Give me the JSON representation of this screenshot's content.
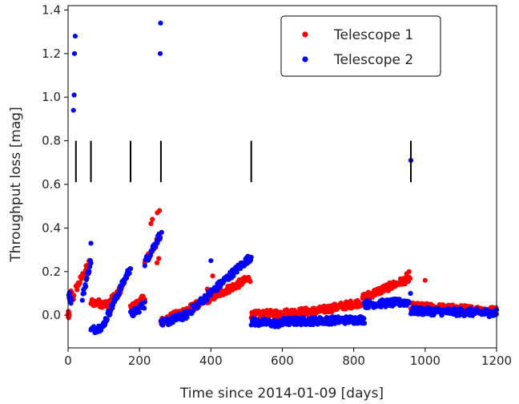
{
  "chart_data": {
    "type": "scatter",
    "xlabel": "Time since 2014-01-09  [days]",
    "ylabel": "Throughput loss  [mag]",
    "xlim": [
      0,
      1200
    ],
    "ylim": [
      -0.15,
      1.42
    ],
    "xticks": [
      0,
      200,
      400,
      600,
      800,
      1000,
      1200
    ],
    "xtick_labels": [
      "0",
      "200",
      "400",
      "600",
      "800",
      "1000",
      "1200"
    ],
    "yticks": [
      0.0,
      0.2,
      0.4,
      0.6,
      0.8,
      1.0,
      1.2,
      1.4
    ],
    "ytick_labels": [
      "0.0",
      "0.2",
      "0.4",
      "0.6",
      "0.8",
      "1.0",
      "1.2",
      "1.4"
    ],
    "grid": false,
    "legend_position": "top-right",
    "series_colors": {
      "Telescope 1": "#ff0000",
      "Telescope 2": "#0000ff"
    },
    "event_markers": {
      "x": [
        22,
        64,
        175,
        260,
        513,
        960
      ],
      "y_range": [
        0.61,
        0.8
      ],
      "color": "#000000"
    },
    "series": [
      {
        "name": "Telescope 1",
        "segments": [
          {
            "x": [
              0,
              2
            ],
            "y": [
              0.0,
              0.0
            ]
          },
          {
            "x": [
              8,
              16
            ],
            "y": [
              0.1,
              0.08
            ]
          },
          {
            "x": [
              22,
              60
            ],
            "y": [
              0.12,
              0.24
            ]
          },
          {
            "x": [
              64,
              110
            ],
            "y": [
              0.06,
              0.05
            ]
          },
          {
            "x": [
              110,
              150
            ],
            "y": [
              0.05,
              0.12
            ]
          },
          {
            "x": [
              175,
              215
            ],
            "y": [
              0.03,
              0.08
            ]
          },
          {
            "x": [
              215,
              258
            ],
            "y": [
              0.24,
              0.36
            ]
          },
          {
            "x": [
              260,
              340
            ],
            "y": [
              -0.03,
              0.03
            ]
          },
          {
            "x": [
              340,
              510
            ],
            "y": [
              0.03,
              0.17
            ]
          },
          {
            "x": [
              513,
              700
            ],
            "y": [
              0.0,
              0.02
            ]
          },
          {
            "x": [
              700,
              825
            ],
            "y": [
              0.02,
              0.06
            ]
          },
          {
            "x": [
              825,
              958
            ],
            "y": [
              0.08,
              0.17
            ]
          },
          {
            "x": [
              960,
              1200
            ],
            "y": [
              0.04,
              0.02
            ]
          }
        ],
        "points": [
          {
            "x": 232,
            "y": 0.42
          },
          {
            "x": 236,
            "y": 0.44
          },
          {
            "x": 250,
            "y": 0.47
          },
          {
            "x": 256,
            "y": 0.48
          },
          {
            "x": 254,
            "y": 0.26
          },
          {
            "x": 249,
            "y": 0.24
          },
          {
            "x": 955,
            "y": 0.2
          },
          {
            "x": 948,
            "y": 0.19
          },
          {
            "x": 1000,
            "y": 0.16
          },
          {
            "x": 60,
            "y": 0.25
          },
          {
            "x": 12,
            "y": 0.09
          },
          {
            "x": 405,
            "y": 0.18
          },
          {
            "x": 390,
            "y": 0.12
          },
          {
            "x": 960,
            "y": 0.03
          },
          {
            "x": 3,
            "y": 0.0
          }
        ]
      },
      {
        "name": "Telescope 2",
        "segments": [
          {
            "x": [
              2,
              10
            ],
            "y": [
              0.1,
              0.06
            ]
          },
          {
            "x": [
              40,
              64
            ],
            "y": [
              0.08,
              0.25
            ]
          },
          {
            "x": [
              64,
              100
            ],
            "y": [
              -0.07,
              -0.05
            ]
          },
          {
            "x": [
              100,
              175
            ],
            "y": [
              -0.04,
              0.22
            ]
          },
          {
            "x": [
              175,
              215
            ],
            "y": [
              0.0,
              0.05
            ]
          },
          {
            "x": [
              215,
              258
            ],
            "y": [
              0.24,
              0.37
            ]
          },
          {
            "x": [
              260,
              330
            ],
            "y": [
              -0.04,
              0.0
            ]
          },
          {
            "x": [
              330,
              513
            ],
            "y": [
              0.0,
              0.27
            ]
          },
          {
            "x": [
              513,
              600
            ],
            "y": [
              -0.03,
              -0.04
            ]
          },
          {
            "x": [
              600,
              830
            ],
            "y": [
              -0.03,
              -0.02
            ]
          },
          {
            "x": [
              830,
              955
            ],
            "y": [
              0.05,
              0.06
            ]
          },
          {
            "x": [
              960,
              1200
            ],
            "y": [
              0.02,
              0.01
            ]
          }
        ],
        "points": [
          {
            "x": 15,
            "y": 0.94
          },
          {
            "x": 17,
            "y": 1.01
          },
          {
            "x": 18,
            "y": 1.2
          },
          {
            "x": 20,
            "y": 1.28
          },
          {
            "x": 258,
            "y": 1.2
          },
          {
            "x": 259,
            "y": 1.34
          },
          {
            "x": 960,
            "y": 0.71
          },
          {
            "x": 64,
            "y": 0.33
          },
          {
            "x": 959,
            "y": 0.1
          },
          {
            "x": 262,
            "y": 0.38
          },
          {
            "x": 400,
            "y": 0.25
          }
        ]
      }
    ]
  }
}
